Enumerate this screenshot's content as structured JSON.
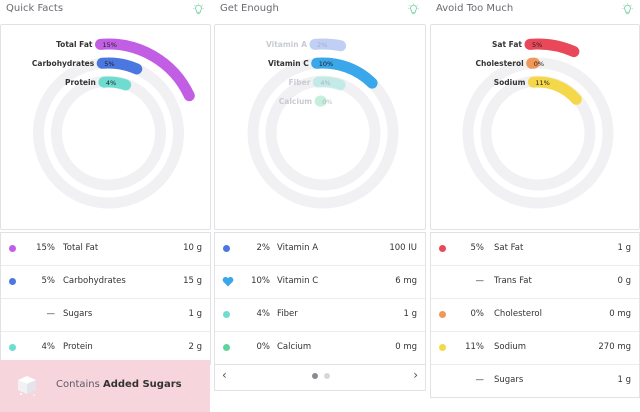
{
  "columns": [
    {
      "title": "Quick Facts",
      "arcs": [
        {
          "label": "Total Fat",
          "pct_label": "15%",
          "value": 15,
          "color": "#c25ee4",
          "faded": false
        },
        {
          "label": "Carbohydrates",
          "pct_label": "5%",
          "value": 5,
          "color": "#4a78e0",
          "faded": false
        },
        {
          "label": "Protein",
          "pct_label": "4%",
          "value": 4,
          "color": "#6fdcd0",
          "faded": false
        }
      ],
      "rows": [
        {
          "pct": "15%",
          "name": "Total Fat",
          "amount": "10 g",
          "color": "#c25ee4",
          "marker": "dot"
        },
        {
          "pct": "5%",
          "name": "Carbohydrates",
          "amount": "15 g",
          "color": "#4a78e0",
          "marker": "dot"
        },
        {
          "pct": "",
          "name": "Sugars",
          "amount": "1 g",
          "color": "",
          "marker": "dash"
        },
        {
          "pct": "4%",
          "name": "Protein",
          "amount": "2 g",
          "color": "#6fdcd0",
          "marker": "dot"
        }
      ],
      "banner": {
        "prefix": "Contains ",
        "bold": "Added Sugars"
      }
    },
    {
      "title": "Get Enough",
      "arcs": [
        {
          "label": "Vitamin A",
          "pct_label": "2%",
          "value": 2,
          "color": "#4a78e0",
          "faded": true
        },
        {
          "label": "Vitamin C",
          "pct_label": "10%",
          "value": 10,
          "color": "#3aa7ea",
          "faded": false
        },
        {
          "label": "Fiber",
          "pct_label": "4%",
          "value": 4,
          "color": "#6fdcd0",
          "faded": true
        },
        {
          "label": "Calcium",
          "pct_label": "0%",
          "value": 0,
          "color": "#5fd39a",
          "faded": true
        }
      ],
      "rows": [
        {
          "pct": "2%",
          "name": "Vitamin A",
          "amount": "100 IU",
          "color": "#4a78e0",
          "marker": "dot"
        },
        {
          "pct": "10%",
          "name": "Vitamin C",
          "amount": "6 mg",
          "color": "#3aa7ea",
          "marker": "heart"
        },
        {
          "pct": "4%",
          "name": "Fiber",
          "amount": "1 g",
          "color": "#6fdcd0",
          "marker": "dot"
        },
        {
          "pct": "0%",
          "name": "Calcium",
          "amount": "0 mg",
          "color": "#5fd39a",
          "marker": "dot"
        }
      ],
      "pager": {
        "prev": "‹",
        "next": "›",
        "active_page": 1,
        "page_count": 2
      }
    },
    {
      "title": "Avoid Too Much",
      "arcs": [
        {
          "label": "Sat Fat",
          "pct_label": "5%",
          "value": 5,
          "color": "#e8485a",
          "faded": false
        },
        {
          "label": "Cholesterol",
          "pct_label": "0%",
          "value": 0,
          "color": "#f0985a",
          "faded": false
        },
        {
          "label": "Sodium",
          "pct_label": "11%",
          "value": 11,
          "color": "#f5d84a",
          "faded": false
        }
      ],
      "rows": [
        {
          "pct": "5%",
          "name": "Sat Fat",
          "amount": "1 g",
          "color": "#e8485a",
          "marker": "dot"
        },
        {
          "pct": "",
          "name": "Trans Fat",
          "amount": "0 g",
          "color": "",
          "marker": "dash"
        },
        {
          "pct": "0%",
          "name": "Cholesterol",
          "amount": "0 mg",
          "color": "#f0985a",
          "marker": "dot"
        },
        {
          "pct": "11%",
          "name": "Sodium",
          "amount": "270 mg",
          "color": "#f5d84a",
          "marker": "dot"
        },
        {
          "pct": "",
          "name": "Sugars",
          "amount": "1 g",
          "color": "",
          "marker": "dash"
        }
      ]
    }
  ],
  "icons": {
    "header": "lightbulb-icon",
    "banner": "sugar-cube-icon",
    "row_highlight": "heart-icon"
  }
}
